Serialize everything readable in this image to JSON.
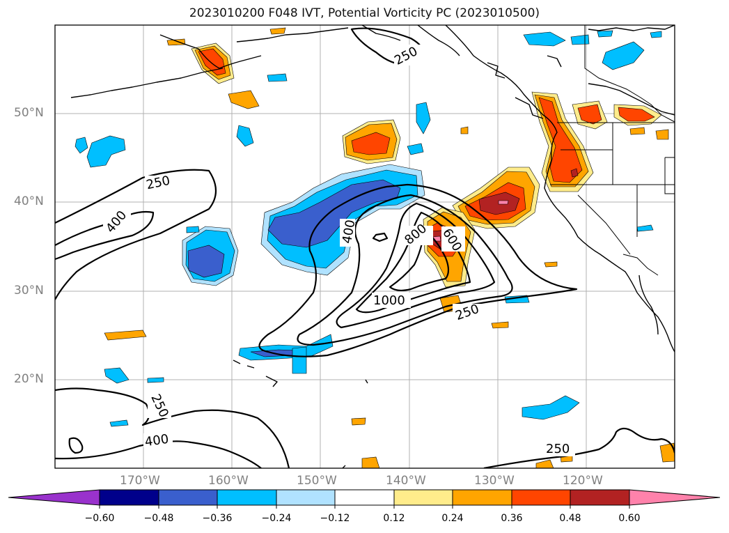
{
  "title": "2023010200 F048 IVT, Potential Vorticity PC (2023010500)",
  "map": {
    "lon_range": [
      -180,
      -110
    ],
    "lat_range": [
      10,
      60
    ],
    "lat_labels": [
      "20°N",
      "30°N",
      "40°N",
      "50°N"
    ],
    "lon_labels": [
      "170°W",
      "160°W",
      "150°W",
      "140°W",
      "130°W",
      "120°W"
    ],
    "gridlines": true,
    "contour_labels": [
      "250",
      "250",
      "400",
      "400",
      "800",
      "600",
      "1000",
      "250",
      "250",
      "400",
      "250"
    ]
  },
  "colorbar": {
    "tick_labels": [
      "−0.60",
      "−0.48",
      "−0.36",
      "−0.24",
      "−0.12",
      "0.12",
      "0.24",
      "0.36",
      "0.48",
      "0.60"
    ],
    "colors": [
      "#9932CC",
      "#00008B",
      "#3A5FCD",
      "#00BFFF",
      "#B0E2FF",
      "#FFFFFF",
      "#FFEC8B",
      "#FFA500",
      "#FF4500",
      "#B22222",
      "#FF82AB"
    ],
    "extend": "both"
  },
  "chart_data": {
    "type": "map",
    "fields": [
      {
        "field": "IVT",
        "display": "black contours",
        "levels_labeled": [
          250,
          400,
          600,
          800,
          1000
        ]
      },
      {
        "field": "Potential Vorticity PC",
        "display": "filled contours",
        "bounds": [
          -0.6,
          -0.48,
          -0.36,
          -0.24,
          -0.12,
          0.12,
          0.24,
          0.36,
          0.48,
          0.6
        ]
      }
    ]
  }
}
